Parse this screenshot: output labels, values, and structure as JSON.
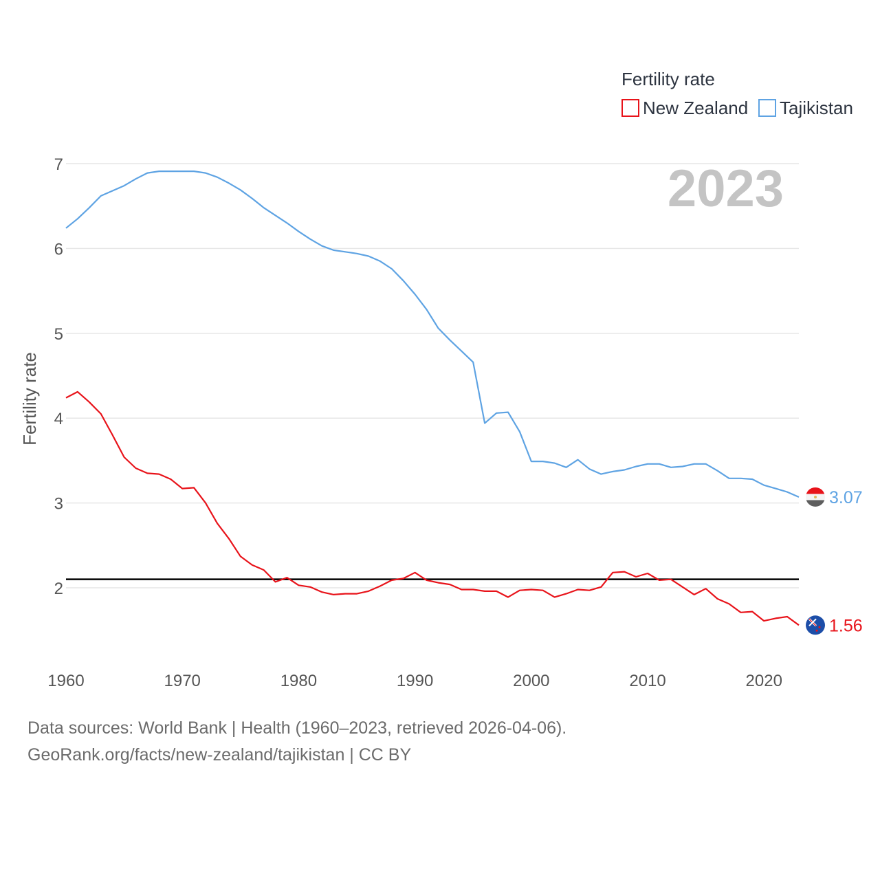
{
  "chart_data": {
    "type": "line",
    "title": "",
    "year_label": "2023",
    "xlabel": "",
    "ylabel": "Fertility rate",
    "xlim": [
      1960,
      2023
    ],
    "ylim": [
      1.3,
      7.25
    ],
    "x_ticks": [
      1960,
      1970,
      1980,
      1990,
      2000,
      2010,
      2020
    ],
    "y_ticks": [
      2,
      3,
      4,
      5,
      6,
      7
    ],
    "grid": true,
    "legend": {
      "title": "Fertility rate",
      "position": "top-right"
    },
    "reference_line": {
      "y": 2.1,
      "color": "#000000"
    },
    "x": [
      1960,
      1961,
      1962,
      1963,
      1964,
      1965,
      1966,
      1967,
      1968,
      1969,
      1970,
      1971,
      1972,
      1973,
      1974,
      1975,
      1976,
      1977,
      1978,
      1979,
      1980,
      1981,
      1982,
      1983,
      1984,
      1985,
      1986,
      1987,
      1988,
      1989,
      1990,
      1991,
      1992,
      1993,
      1994,
      1995,
      1996,
      1997,
      1998,
      1999,
      2000,
      2001,
      2002,
      2003,
      2004,
      2005,
      2006,
      2007,
      2008,
      2009,
      2010,
      2011,
      2012,
      2013,
      2014,
      2015,
      2016,
      2017,
      2018,
      2019,
      2020,
      2021,
      2022,
      2023
    ],
    "series": [
      {
        "name": "New Zealand",
        "color": "#e8131a",
        "end_label": "1.56",
        "flag": "new-zealand",
        "values": [
          4.24,
          4.31,
          4.19,
          4.05,
          3.8,
          3.54,
          3.41,
          3.35,
          3.34,
          3.28,
          3.17,
          3.18,
          3.0,
          2.76,
          2.58,
          2.37,
          2.27,
          2.21,
          2.07,
          2.12,
          2.03,
          2.01,
          1.95,
          1.92,
          1.93,
          1.93,
          1.96,
          2.02,
          2.09,
          2.11,
          2.18,
          2.09,
          2.06,
          2.04,
          1.98,
          1.98,
          1.96,
          1.96,
          1.89,
          1.97,
          1.98,
          1.97,
          1.89,
          1.93,
          1.98,
          1.97,
          2.01,
          2.18,
          2.19,
          2.13,
          2.17,
          2.09,
          2.1,
          2.01,
          1.92,
          1.99,
          1.87,
          1.81,
          1.71,
          1.72,
          1.61,
          1.64,
          1.66,
          1.56
        ]
      },
      {
        "name": "Tajikistan",
        "color": "#5ea3e3",
        "end_label": "3.07",
        "flag": "tajikistan",
        "values": [
          6.24,
          6.35,
          6.48,
          6.62,
          6.68,
          6.74,
          6.82,
          6.89,
          6.91,
          6.91,
          6.91,
          6.91,
          6.89,
          6.84,
          6.77,
          6.69,
          6.59,
          6.48,
          6.39,
          6.3,
          6.2,
          6.11,
          6.03,
          5.98,
          5.96,
          5.94,
          5.91,
          5.85,
          5.76,
          5.62,
          5.46,
          5.28,
          5.06,
          4.92,
          4.79,
          4.66,
          3.94,
          4.06,
          4.07,
          3.84,
          3.49,
          3.49,
          3.47,
          3.42,
          3.51,
          3.4,
          3.34,
          3.37,
          3.39,
          3.43,
          3.46,
          3.46,
          3.42,
          3.43,
          3.46,
          3.46,
          3.38,
          3.29,
          3.29,
          3.28,
          3.21,
          3.17,
          3.13,
          3.07
        ]
      }
    ]
  },
  "footer": {
    "sources": "Data sources: World Bank | Health (1960–2023, retrieved 2026-04-06).",
    "url": "GeoRank.org/facts/new-zealand/tajikistan | CC BY"
  }
}
